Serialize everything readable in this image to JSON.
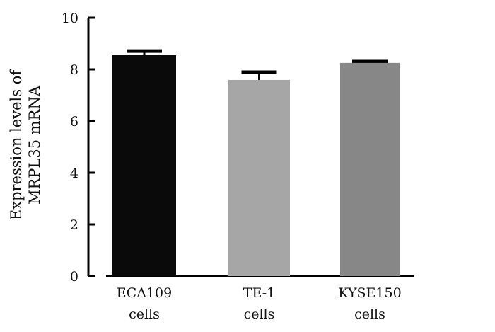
{
  "chart_data": {
    "type": "bar",
    "title": "",
    "xlabel": "",
    "ylabel_lines": [
      "Expression levels of",
      "MRPL35 mRNA"
    ],
    "categories": [
      [
        "ECA109",
        "cells"
      ],
      [
        "TE-1",
        "cells"
      ],
      [
        "KYSE150",
        "cells"
      ]
    ],
    "values": [
      8.55,
      7.59,
      8.25
    ],
    "error_upper": [
      0.16,
      0.3,
      0.05
    ],
    "colors": [
      "#0a0a0a",
      "#a6a6a6",
      "#878787"
    ],
    "ylim": [
      0,
      10
    ],
    "yticks": [
      0,
      2,
      4,
      6,
      8,
      10
    ],
    "grid": false,
    "legend": "none"
  }
}
